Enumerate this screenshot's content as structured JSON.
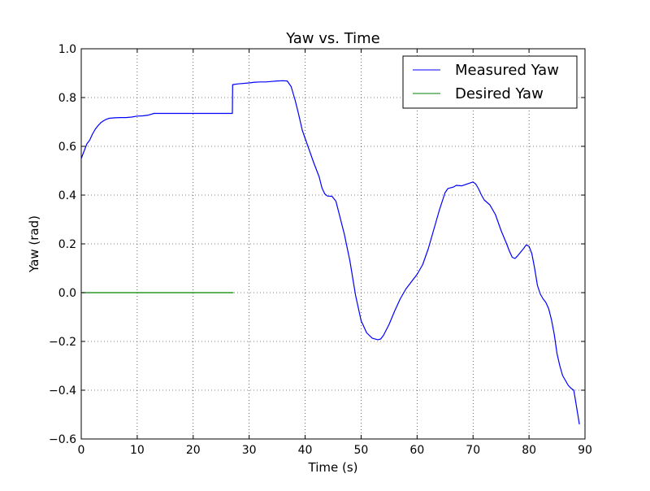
{
  "chart_data": {
    "type": "line",
    "title": "Yaw vs. Time",
    "xlabel": "Time (s)",
    "ylabel": "Yaw (rad)",
    "xlim": [
      0,
      90
    ],
    "ylim": [
      -0.6,
      1.0
    ],
    "grid": true,
    "legend_position": "top-right",
    "x_ticks": [
      0,
      10,
      20,
      30,
      40,
      50,
      60,
      70,
      80,
      90
    ],
    "x_tick_labels": [
      "0",
      "10",
      "20",
      "30",
      "40",
      "50",
      "60",
      "70",
      "80",
      "90"
    ],
    "y_ticks": [
      -0.6,
      -0.4,
      -0.2,
      0.0,
      0.2,
      0.4,
      0.6,
      0.8,
      1.0
    ],
    "y_tick_labels": [
      "−0.6",
      "−0.4",
      "−0.2",
      "0.0",
      "0.2",
      "0.4",
      "0.6",
      "0.8",
      "1.0"
    ],
    "series": [
      {
        "name": "Measured Yaw",
        "color": "#0000ff",
        "points": [
          [
            0,
            0.55
          ],
          [
            0.5,
            0.58
          ],
          [
            1,
            0.61
          ],
          [
            1.5,
            0.625
          ],
          [
            2,
            0.65
          ],
          [
            2.5,
            0.67
          ],
          [
            3,
            0.685
          ],
          [
            3.5,
            0.697
          ],
          [
            4,
            0.705
          ],
          [
            4.5,
            0.711
          ],
          [
            5,
            0.715
          ],
          [
            6,
            0.717
          ],
          [
            7,
            0.718
          ],
          [
            8,
            0.718
          ],
          [
            9,
            0.72
          ],
          [
            10,
            0.724
          ],
          [
            11,
            0.725
          ],
          [
            12,
            0.728
          ],
          [
            13,
            0.735
          ],
          [
            15,
            0.735
          ],
          [
            20,
            0.735
          ],
          [
            25,
            0.735
          ],
          [
            27,
            0.735
          ],
          [
            27.05,
            0.853
          ],
          [
            28,
            0.856
          ],
          [
            30,
            0.86
          ],
          [
            31,
            0.863
          ],
          [
            32,
            0.864
          ],
          [
            33,
            0.864
          ],
          [
            34,
            0.866
          ],
          [
            35,
            0.868
          ],
          [
            36,
            0.869
          ],
          [
            36.8,
            0.868
          ],
          [
            37.5,
            0.845
          ],
          [
            38.2,
            0.79
          ],
          [
            38.8,
            0.735
          ],
          [
            39.5,
            0.665
          ],
          [
            40.5,
            0.6
          ],
          [
            41.5,
            0.535
          ],
          [
            42.5,
            0.475
          ],
          [
            43,
            0.43
          ],
          [
            43.5,
            0.405
          ],
          [
            44,
            0.396
          ],
          [
            44.8,
            0.395
          ],
          [
            45.5,
            0.375
          ],
          [
            46,
            0.33
          ],
          [
            47,
            0.24
          ],
          [
            48,
            0.13
          ],
          [
            49,
            -0.01
          ],
          [
            50,
            -0.115
          ],
          [
            51,
            -0.165
          ],
          [
            52,
            -0.187
          ],
          [
            53,
            -0.193
          ],
          [
            53.5,
            -0.19
          ],
          [
            54,
            -0.175
          ],
          [
            55,
            -0.13
          ],
          [
            56,
            -0.075
          ],
          [
            57,
            -0.025
          ],
          [
            58,
            0.015
          ],
          [
            59,
            0.045
          ],
          [
            60,
            0.075
          ],
          [
            61,
            0.115
          ],
          [
            62,
            0.18
          ],
          [
            63,
            0.26
          ],
          [
            64,
            0.34
          ],
          [
            65,
            0.41
          ],
          [
            65.5,
            0.427
          ],
          [
            66.5,
            0.433
          ],
          [
            67,
            0.44
          ],
          [
            68,
            0.438
          ],
          [
            69,
            0.446
          ],
          [
            70,
            0.454
          ],
          [
            70.5,
            0.445
          ],
          [
            71,
            0.425
          ],
          [
            71.5,
            0.4
          ],
          [
            72,
            0.38
          ],
          [
            73,
            0.36
          ],
          [
            74,
            0.32
          ],
          [
            75,
            0.255
          ],
          [
            76,
            0.2
          ],
          [
            76.5,
            0.17
          ],
          [
            77,
            0.145
          ],
          [
            77.5,
            0.14
          ],
          [
            78,
            0.152
          ],
          [
            79,
            0.18
          ],
          [
            79.5,
            0.196
          ],
          [
            80,
            0.19
          ],
          [
            80.5,
            0.16
          ],
          [
            81,
            0.1
          ],
          [
            81.5,
            0.03
          ],
          [
            82,
            -0.005
          ],
          [
            82.5,
            -0.025
          ],
          [
            83,
            -0.04
          ],
          [
            83.5,
            -0.065
          ],
          [
            84,
            -0.11
          ],
          [
            84.5,
            -0.17
          ],
          [
            85,
            -0.25
          ],
          [
            85.5,
            -0.3
          ],
          [
            86,
            -0.34
          ],
          [
            86.5,
            -0.36
          ],
          [
            87,
            -0.38
          ],
          [
            87.5,
            -0.392
          ],
          [
            88,
            -0.4
          ],
          [
            88.5,
            -0.47
          ],
          [
            89,
            -0.54
          ]
        ]
      },
      {
        "name": "Desired Yaw",
        "color": "#008000",
        "points": [
          [
            0,
            0.0
          ],
          [
            27.2,
            0.0
          ]
        ]
      }
    ]
  }
}
